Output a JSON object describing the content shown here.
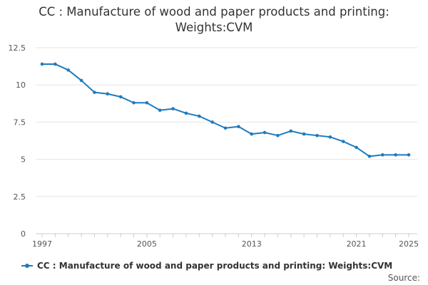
{
  "chart_data": {
    "type": "line",
    "title": "CC : Manufacture of wood and paper products and printing: Weights:CVM",
    "xlabel": "",
    "ylabel": "",
    "ylim": [
      0,
      12.5
    ],
    "yticks": [
      "0",
      "2.5",
      "5",
      "7.5",
      "10",
      "12.5"
    ],
    "xlim": [
      1997,
      2025
    ],
    "xticks": [
      "1997",
      "2005",
      "2013",
      "2021",
      "2025"
    ],
    "grid": true,
    "legend": "bottom",
    "x": [
      1997,
      1998,
      1999,
      2000,
      2001,
      2002,
      2003,
      2004,
      2005,
      2006,
      2007,
      2008,
      2009,
      2010,
      2011,
      2012,
      2013,
      2014,
      2015,
      2016,
      2017,
      2018,
      2019,
      2020,
      2021,
      2022,
      2023,
      2024,
      2025
    ],
    "series": [
      {
        "name": "CC : Manufacture of wood and paper products and printing: Weights:CVM",
        "color": "#1f7bbf",
        "values": [
          11.4,
          11.4,
          11.0,
          10.3,
          9.5,
          9.4,
          9.2,
          8.8,
          8.8,
          8.3,
          8.4,
          8.1,
          7.9,
          7.5,
          7.1,
          7.2,
          6.7,
          6.8,
          6.6,
          6.9,
          6.7,
          6.6,
          6.5,
          6.2,
          5.8,
          5.2,
          5.3,
          5.3,
          5.3
        ]
      }
    ],
    "source": "Source:"
  }
}
